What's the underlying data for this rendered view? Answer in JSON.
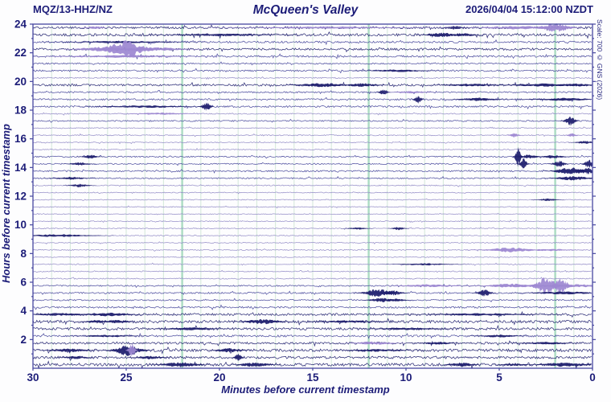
{
  "header": {
    "station": "MQZ/13-HHZ/NZ",
    "title": "McQueen's Valley",
    "timestamp": "2026/04/04 15:12:00 NZDT"
  },
  "side_note": "Scale: 700 © GNS (2026)",
  "chart_data": {
    "type": "line",
    "subtype": "helicorder-seismogram-drum-plot",
    "title": "McQueen's Valley",
    "station": "MQZ/13-HHZ/NZ",
    "timestamp_label": "2026/04/04 15:12:00 NZDT",
    "scale_note": "Scale: 700 © GNS (2026)",
    "xlabel": "Minutes before current timestamp",
    "ylabel": "Hours before current timestamp",
    "x_ticks": [
      30,
      25,
      20,
      15,
      10,
      5,
      0
    ],
    "y_ticks": [
      2,
      4,
      6,
      8,
      10,
      12,
      14,
      16,
      18,
      20,
      22,
      24
    ],
    "xlim": [
      30,
      0
    ],
    "ylim": [
      0,
      24
    ],
    "rows": 48,
    "minutes_per_row": 30,
    "grid": "minor vertical line each minute, stronger line each 10 absolute minutes",
    "major_grid_minutes_before": [
      2,
      12,
      22
    ],
    "legend_position": "none",
    "colors": {
      "trace_dark": "#1e1e6e",
      "trace_mid": "#44449a",
      "trace_quiet": "#9089c6",
      "overscale": "#9d88d2",
      "grid_minor": "#d7eadd",
      "grid_major": "#abdcc3",
      "frame": "#4646a0",
      "text": "#1c1c78"
    },
    "row_noise": [
      1.0,
      1.2,
      0.9,
      1.0,
      0.9,
      0.65,
      0.8,
      0.55,
      0.95,
      0.7,
      0.8,
      0.85,
      0.5,
      0.6,
      0.45,
      0.5,
      0.45,
      0.45,
      0.6,
      0.6,
      0.7,
      0.6,
      0.5,
      0.45,
      0.4,
      0.4,
      0.35,
      0.4,
      0.45,
      0.4,
      0.4,
      0.5,
      0.4,
      0.45,
      0.45,
      0.5,
      0.6,
      0.7,
      0.6,
      0.85,
      1.05,
      1.25,
      1.15,
      0.9,
      1.0,
      1.25,
      1.15,
      1.35
    ],
    "events_format": [
      "row_from_top",
      "minutes_before",
      "amplitude_px",
      "width_minutes",
      "color"
    ],
    "events": [
      [
        0,
        2.0,
        6,
        0.5,
        "purple"
      ],
      [
        0,
        4.0,
        2.2,
        1.2,
        "purple"
      ],
      [
        0,
        7.4,
        2.2,
        0.3,
        "navy"
      ],
      [
        0,
        26.7,
        1.8,
        0.3,
        "purple"
      ],
      [
        0,
        14,
        1.2,
        2.5,
        "purple"
      ],
      [
        1,
        8.1,
        2.8,
        0.5,
        "navy"
      ],
      [
        1,
        6.9,
        2.0,
        0.4,
        "navy"
      ],
      [
        1,
        20,
        1.5,
        1.5,
        "navy"
      ],
      [
        2,
        25,
        1.4,
        1.5,
        "navy"
      ],
      [
        3,
        25.0,
        11,
        0.7,
        "purple"
      ],
      [
        3,
        26.3,
        3.0,
        0.8,
        "purple"
      ],
      [
        3,
        23.6,
        2.5,
        1.0,
        "purple"
      ],
      [
        4,
        25.3,
        1.6,
        1.8,
        "purple"
      ],
      [
        6,
        10.5,
        1.6,
        0.8,
        "navy"
      ],
      [
        8,
        14.5,
        2.8,
        0.7,
        "navy"
      ],
      [
        8,
        12.4,
        2.4,
        0.5,
        "navy"
      ],
      [
        8,
        6.5,
        1.8,
        0.8,
        "navy"
      ],
      [
        8,
        2.6,
        2.0,
        1.0,
        "navy"
      ],
      [
        8,
        1.0,
        2.0,
        0.6,
        "navy"
      ],
      [
        9,
        11.2,
        3.5,
        0.15,
        "navy"
      ],
      [
        9,
        9.7,
        1.4,
        0.5,
        "purple"
      ],
      [
        10,
        9.35,
        5.5,
        0.12,
        "navy"
      ],
      [
        10,
        6.1,
        2.2,
        0.6,
        "navy"
      ],
      [
        10,
        1.5,
        1.8,
        1.0,
        "navy"
      ],
      [
        11,
        20.7,
        6.5,
        0.15,
        "navy"
      ],
      [
        11,
        24,
        1.6,
        1.2,
        "navy"
      ],
      [
        12,
        23.2,
        1.4,
        0.8,
        "purple"
      ],
      [
        13,
        1.2,
        6.5,
        0.18,
        "navy"
      ],
      [
        15,
        4.2,
        2.8,
        0.15,
        "purple"
      ],
      [
        15,
        1.1,
        2.3,
        0.15,
        "purple"
      ],
      [
        16,
        0.4,
        2.0,
        0.3,
        "navy"
      ],
      [
        18,
        4.0,
        13,
        0.1,
        "navy"
      ],
      [
        18,
        3.4,
        2.8,
        0.3,
        "navy"
      ],
      [
        18,
        2.1,
        2.2,
        0.35,
        "navy"
      ],
      [
        18,
        26.9,
        2.4,
        0.25,
        "navy"
      ],
      [
        19,
        3.7,
        7.5,
        0.12,
        "navy"
      ],
      [
        19,
        1.8,
        4.5,
        0.2,
        "navy"
      ],
      [
        19,
        0.2,
        5.5,
        0.15,
        "navy"
      ],
      [
        19,
        27.5,
        2.0,
        0.3,
        "navy"
      ],
      [
        20,
        1.2,
        4.5,
        0.5,
        "navy"
      ],
      [
        20,
        0.3,
        4.0,
        0.3,
        "navy"
      ],
      [
        21,
        1.0,
        2.8,
        0.6,
        "navy"
      ],
      [
        21,
        28,
        1.8,
        0.5,
        "navy"
      ],
      [
        22,
        27.5,
        2.2,
        0.3,
        "navy"
      ],
      [
        24,
        2.4,
        1.6,
        0.3,
        "navy"
      ],
      [
        28,
        10.4,
        2.2,
        0.2,
        "navy"
      ],
      [
        28,
        12.6,
        1.4,
        0.3,
        "navy"
      ],
      [
        29,
        28.6,
        1.8,
        1.0,
        "navy"
      ],
      [
        31,
        4.4,
        3.0,
        0.8,
        "purple"
      ],
      [
        31,
        2.3,
        1.4,
        0.7,
        "purple"
      ],
      [
        33,
        9.0,
        1.4,
        0.8,
        "navy"
      ],
      [
        36,
        2.5,
        11,
        0.4,
        "purple"
      ],
      [
        36,
        1.7,
        9.0,
        0.28,
        "purple"
      ],
      [
        36,
        4.3,
        3.0,
        0.8,
        "purple"
      ],
      [
        36,
        8.8,
        1.8,
        0.9,
        "purple"
      ],
      [
        36,
        0.8,
        2.0,
        0.8,
        "purple"
      ],
      [
        37,
        11.5,
        5.5,
        0.45,
        "navy"
      ],
      [
        37,
        10.7,
        3.5,
        0.3,
        "navy"
      ],
      [
        37,
        5.8,
        4.5,
        0.22,
        "navy"
      ],
      [
        37,
        1.5,
        1.8,
        1.0,
        "navy"
      ],
      [
        38,
        11.3,
        2.8,
        0.4,
        "navy"
      ],
      [
        38,
        10.5,
        2.0,
        0.3,
        "navy"
      ],
      [
        40,
        26,
        2.2,
        0.8,
        "navy"
      ],
      [
        40,
        28.5,
        1.8,
        0.8,
        "navy"
      ],
      [
        40,
        6.0,
        1.5,
        1.5,
        "navy"
      ],
      [
        41,
        17.7,
        3.2,
        0.6,
        "navy"
      ],
      [
        41,
        26.6,
        2.2,
        0.4,
        "navy"
      ],
      [
        41,
        25.5,
        2.2,
        0.4,
        "navy"
      ],
      [
        41,
        13,
        1.5,
        1.0,
        "navy"
      ],
      [
        42,
        21.5,
        1.8,
        0.8,
        "navy"
      ],
      [
        42,
        10,
        1.5,
        1.0,
        "navy"
      ],
      [
        43,
        5.0,
        1.8,
        0.6,
        "navy"
      ],
      [
        43,
        26,
        1.5,
        0.8,
        "navy"
      ],
      [
        44,
        11.7,
        2.2,
        0.6,
        "purple"
      ],
      [
        44,
        8.3,
        1.8,
        0.5,
        "navy"
      ],
      [
        44,
        2.5,
        1.6,
        0.7,
        "navy"
      ],
      [
        45,
        24.9,
        7.5,
        0.45,
        "navy"
      ],
      [
        45,
        24.7,
        9.5,
        0.12,
        "purple"
      ],
      [
        45,
        19.5,
        2.8,
        0.4,
        "navy"
      ],
      [
        45,
        28,
        2.2,
        0.6,
        "navy"
      ],
      [
        45,
        11.5,
        1.8,
        0.8,
        "navy"
      ],
      [
        46,
        19.0,
        5.5,
        0.12,
        "navy"
      ],
      [
        46,
        23.7,
        2.2,
        0.4,
        "navy"
      ],
      [
        46,
        27.7,
        1.8,
        0.4,
        "navy"
      ],
      [
        47,
        22.1,
        3.2,
        0.6,
        "navy"
      ],
      [
        47,
        18.1,
        3.0,
        0.5,
        "navy"
      ],
      [
        47,
        7.0,
        2.8,
        0.4,
        "navy"
      ],
      [
        47,
        1.4,
        2.8,
        0.8,
        "navy"
      ],
      [
        47,
        4.2,
        1.6,
        0.4,
        "navy"
      ]
    ]
  }
}
